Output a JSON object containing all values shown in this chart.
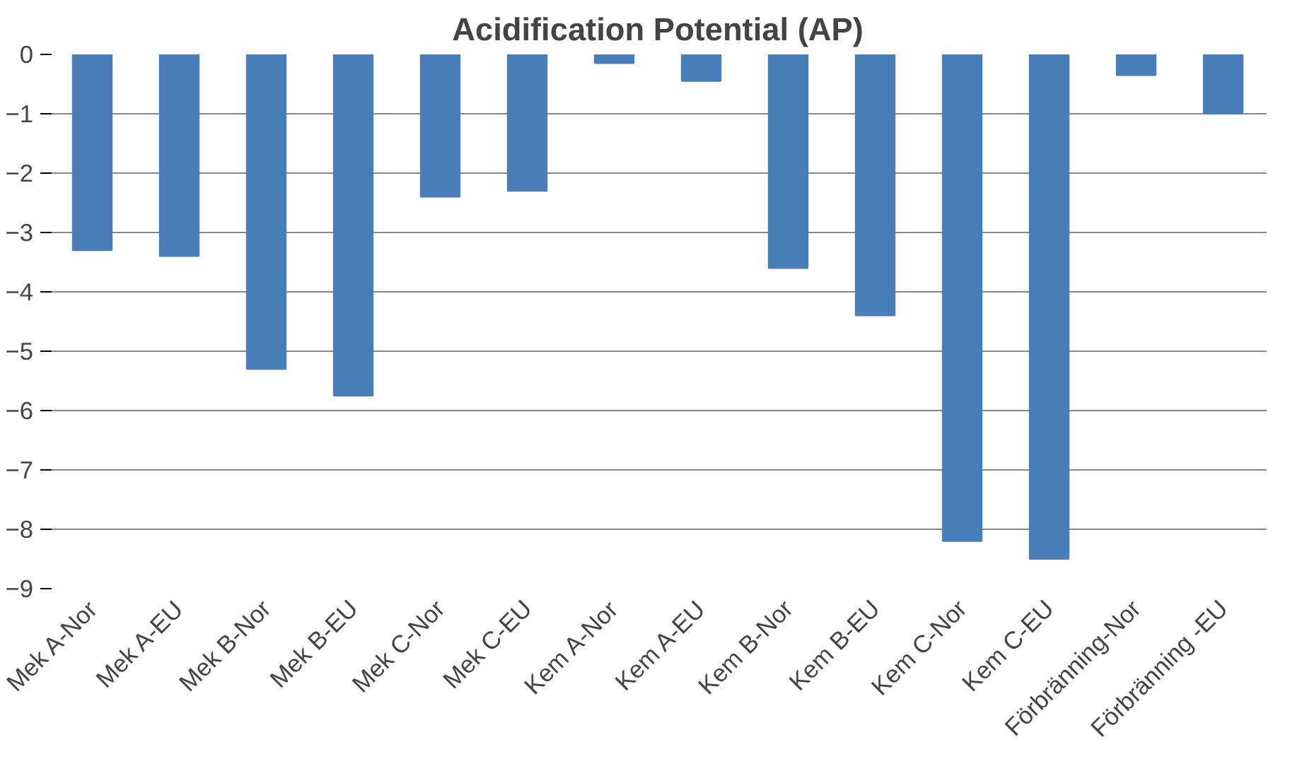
{
  "chart_data": {
    "type": "bar",
    "title": "Acidification Potential (AP)",
    "categories": [
      "Mek A-Nor",
      "Mek A-EU",
      "Mek B-Nor",
      "Mek B-EU",
      "Mek C-Nor",
      "Mek C-EU",
      "Kem A-Nor",
      "Kem A-EU",
      "Kem B-Nor",
      "Kem B-EU",
      "Kem C-Nor",
      "Kem C-EU",
      "Förbränning-Nor",
      "Förbränning -EU"
    ],
    "values": [
      -3.3,
      -3.4,
      -5.3,
      -5.75,
      -2.4,
      -2.3,
      -0.15,
      -0.45,
      -3.6,
      -4.4,
      -8.2,
      -8.5,
      -0.35,
      -1.0
    ],
    "color": "#4a7ebb",
    "ylim": [
      -9,
      0
    ],
    "yticks": [
      0,
      -1,
      -2,
      -3,
      -4,
      -5,
      -6,
      -7,
      -8,
      -9
    ],
    "grid": "y"
  }
}
